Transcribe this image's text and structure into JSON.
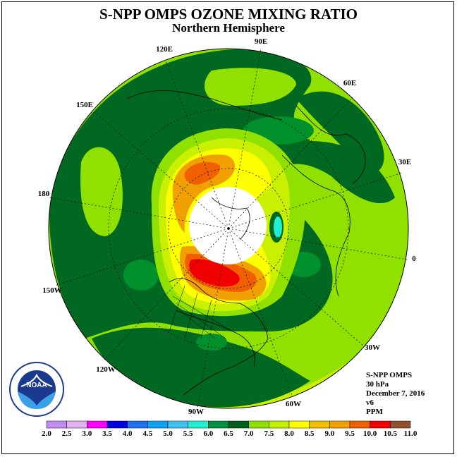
{
  "header": {
    "title": "S-NPP OMPS OZONE MIXING RATIO",
    "subtitle": "Northern Hemisphere"
  },
  "lon_labels": {
    "l90e": "90E",
    "l60e": "60E",
    "l30e": "30E",
    "l0": "0",
    "l30w": "30W",
    "l60w": "60W",
    "l90w": "90W",
    "l120w": "120W",
    "l150w": "150W",
    "l180": "180",
    "l150e": "150E",
    "l120e": "120E"
  },
  "info": {
    "instrument": "S-NPP OMPS",
    "level": "30 hPa",
    "date": "December 7, 2016",
    "version": "v6",
    "units": "PPM"
  },
  "logo": {
    "text": "NOAA",
    "ring_text": "NATIONAL OCEANIC AND ATMOSPHERIC ADMINISTRATION U.S. DEPARTMENT OF COMMERCE"
  },
  "colorbar": {
    "labels": [
      "2.0",
      "2.5",
      "3.0",
      "3.5",
      "4.0",
      "4.5",
      "5.0",
      "5.5",
      "6.0",
      "6.5",
      "7.0",
      "7.5",
      "8.0",
      "8.5",
      "9.0",
      "9.5",
      "10.0",
      "10.5",
      "11.0"
    ],
    "colors": [
      "#c08cf0",
      "#e0b0f0",
      "#ff00ff",
      "#0000e0",
      "#2070f0",
      "#10a0f0",
      "#40c0f0",
      "#20f0d0",
      "#009040",
      "#006020",
      "#90e000",
      "#c0f000",
      "#ffff00",
      "#f0c000",
      "#f0a000",
      "#f06000",
      "#f00000",
      "#905030"
    ]
  },
  "palette": {
    "dark_green": "#006820",
    "mid_green": "#00902c",
    "light_green": "#90e000",
    "yellow_green": "#c8f000",
    "yellow": "#ffff00",
    "orange": "#f0a000",
    "dark_orange": "#f06000",
    "red": "#f00000",
    "cyan": "#20f0d0"
  }
}
